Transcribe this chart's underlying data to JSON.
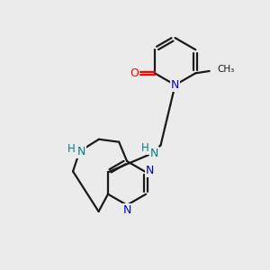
{
  "bg_color": "#ebebeb",
  "bond_color": "#1a1a1a",
  "N_color": "#0000cd",
  "O_color": "#ff0000",
  "NH_color": "#008080",
  "line_width": 1.6,
  "figsize": [
    3.0,
    3.0
  ],
  "dpi": 100,
  "xlim": [
    0,
    10
  ],
  "ylim": [
    0,
    10
  ]
}
